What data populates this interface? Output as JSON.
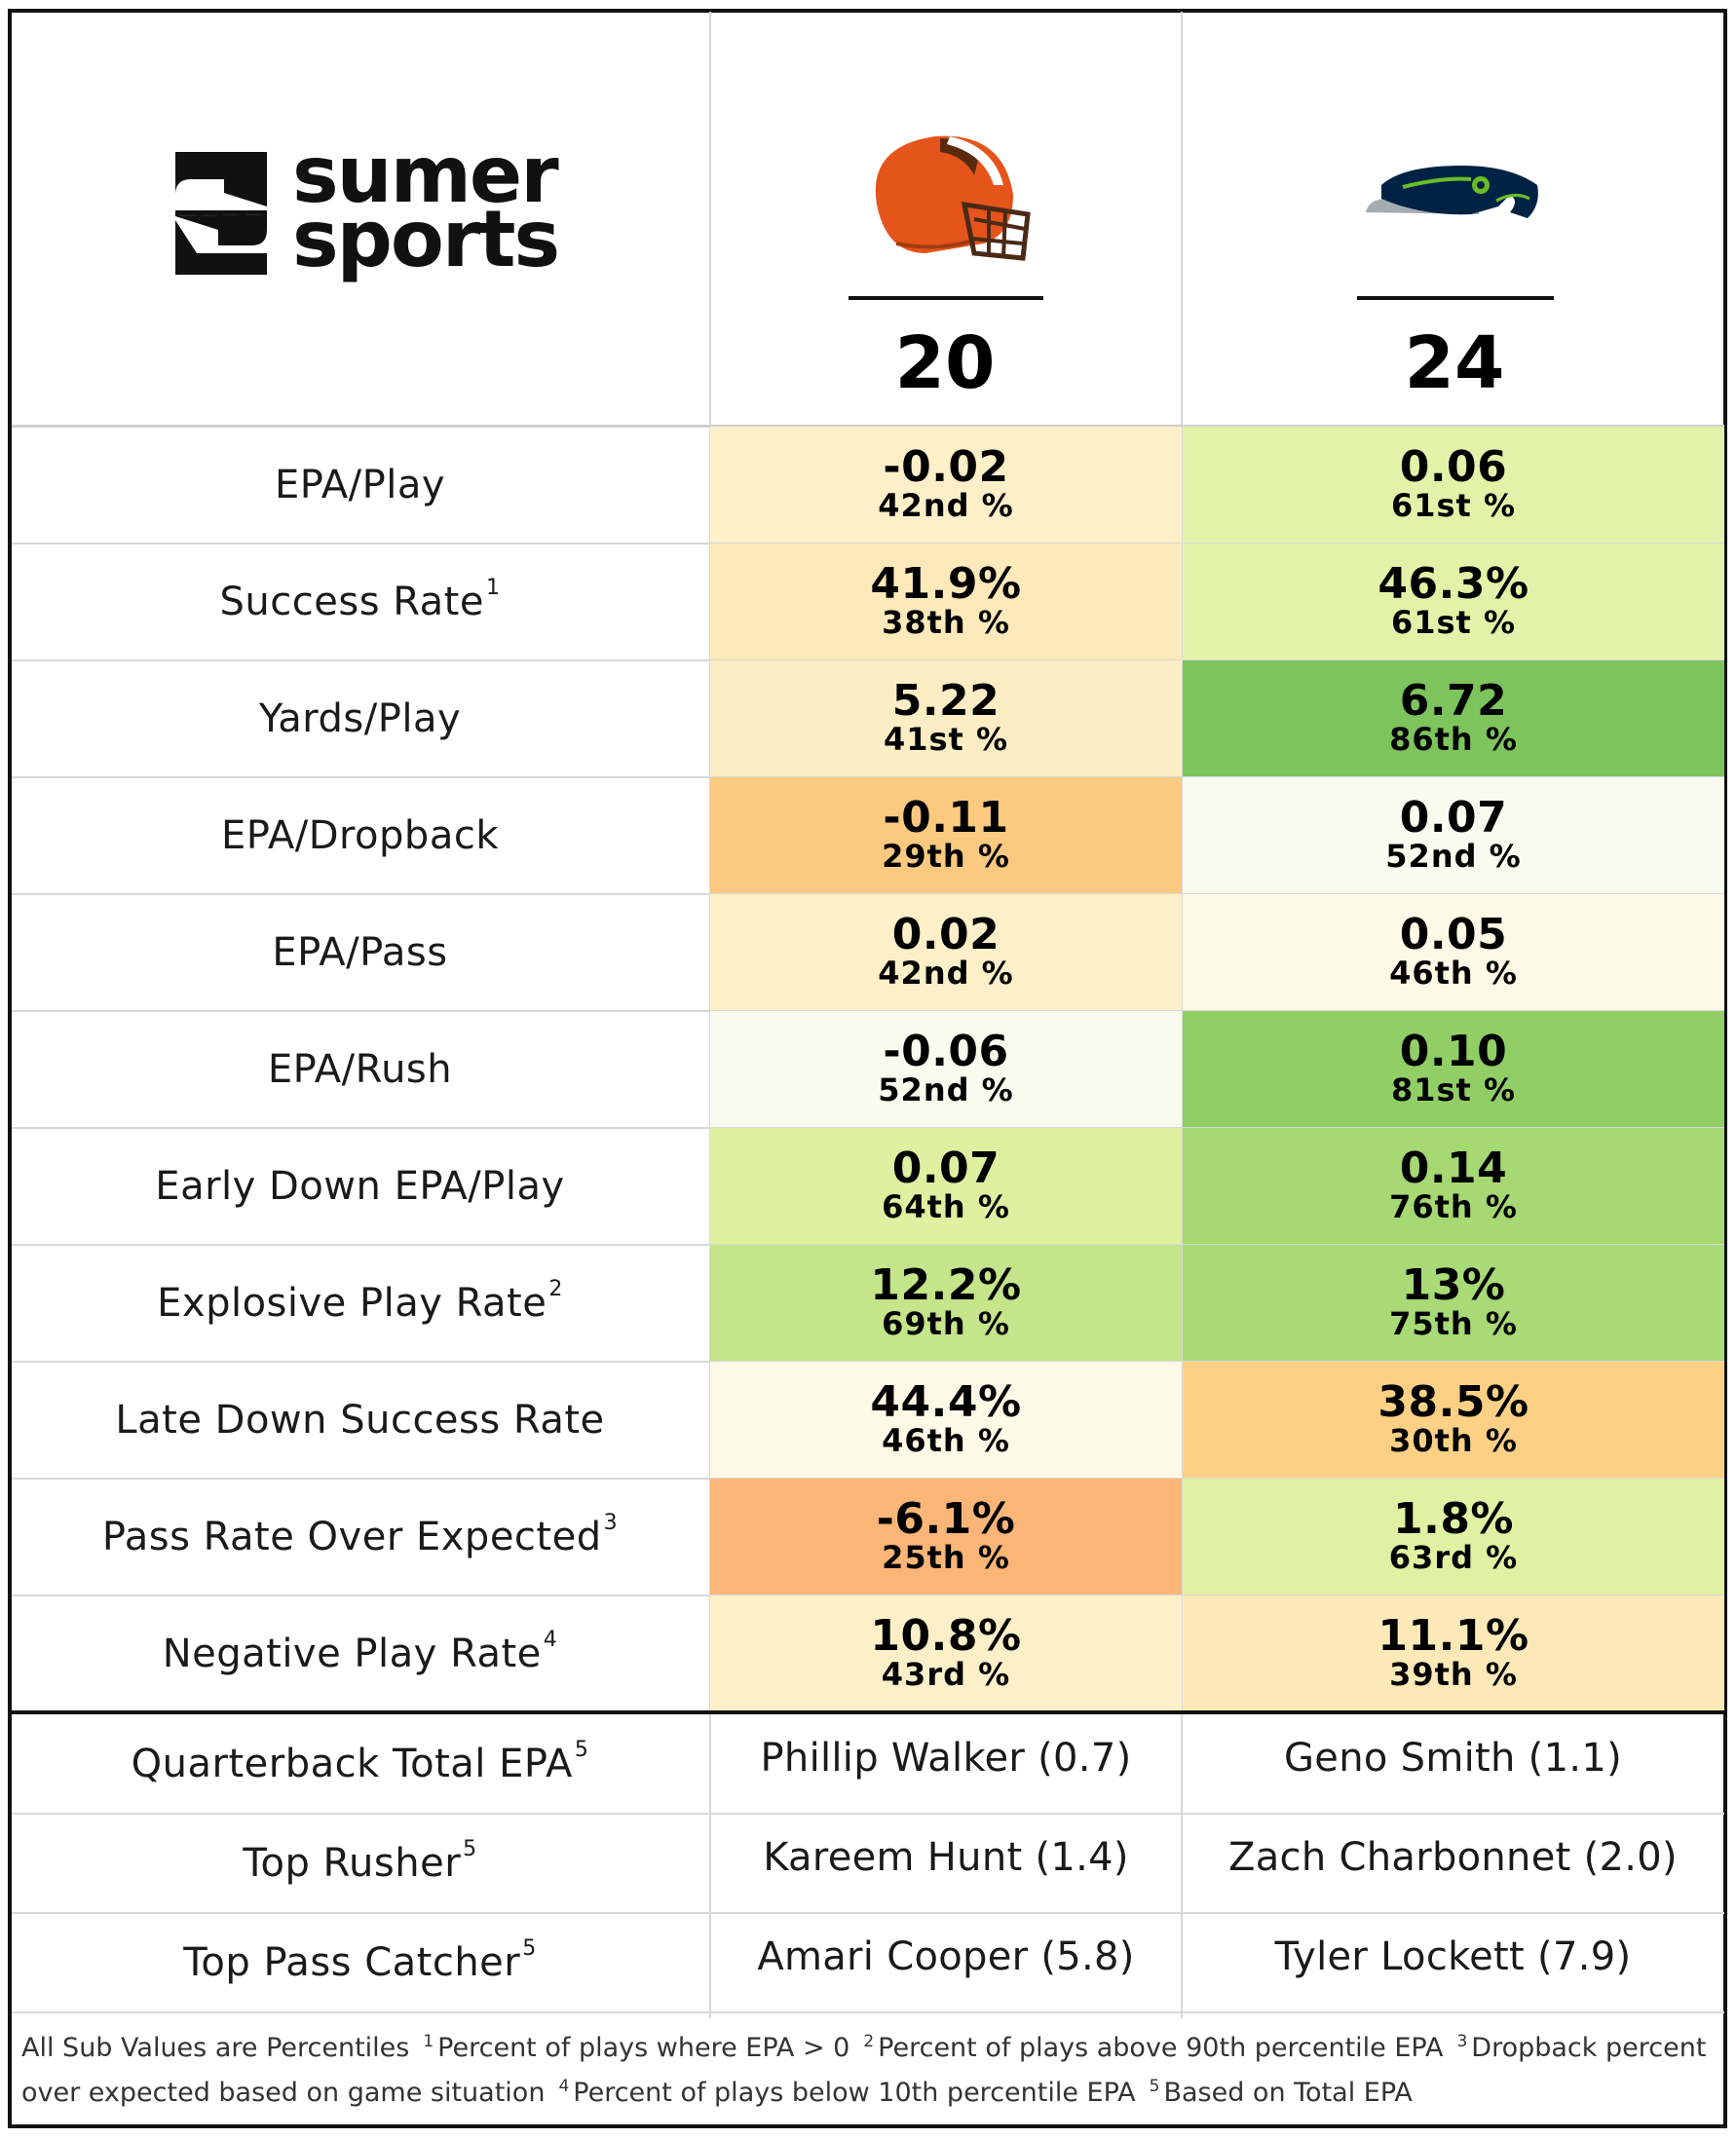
{
  "brand": {
    "line1": "sumer",
    "line2": "sports"
  },
  "teams": [
    {
      "name_icon": "browns-helmet-icon",
      "score": "20",
      "color": "#e4541b"
    },
    {
      "name_icon": "seahawks-logo-icon",
      "score": "24",
      "color": "#002244"
    }
  ],
  "rows": [
    {
      "label": "EPA/Play",
      "sup": "",
      "a": {
        "v": "-0.02",
        "p": "42nd %",
        "bg": "#fdefc8"
      },
      "b": {
        "v": "0.06",
        "p": "61st %",
        "bg": "#e2f3a9"
      }
    },
    {
      "label": "Success Rate",
      "sup": "1",
      "a": {
        "v": "41.9%",
        "p": "38th %",
        "bg": "#fde9b9"
      },
      "b": {
        "v": "46.3%",
        "p": "61st %",
        "bg": "#e2f3a9"
      }
    },
    {
      "label": "Yards/Play",
      "sup": "",
      "a": {
        "v": "5.22",
        "p": "41st %",
        "bg": "#fdedc4"
      },
      "b": {
        "v": "6.72",
        "p": "86th %",
        "bg": "#7dc45d"
      }
    },
    {
      "label": "EPA/Dropback",
      "sup": "",
      "a": {
        "v": "-0.11",
        "p": "29th %",
        "bg": "#fbc97f"
      },
      "b": {
        "v": "0.07",
        "p": "52nd %",
        "bg": "#f8fbee"
      }
    },
    {
      "label": "EPA/Pass",
      "sup": "",
      "a": {
        "v": "0.02",
        "p": "42nd %",
        "bg": "#fdefc8"
      },
      "b": {
        "v": "0.05",
        "p": "46th %",
        "bg": "#fef8e6"
      }
    },
    {
      "label": "EPA/Rush",
      "sup": "",
      "a": {
        "v": "-0.06",
        "p": "52nd %",
        "bg": "#f8fbee"
      },
      "b": {
        "v": "0.10",
        "p": "81st %",
        "bg": "#91cf66"
      }
    },
    {
      "label": "Early Down EPA/Play",
      "sup": "",
      "a": {
        "v": "0.07",
        "p": "64th %",
        "bg": "#ddf1a0"
      },
      "b": {
        "v": "0.14",
        "p": "76th %",
        "bg": "#a6d873"
      }
    },
    {
      "label": "Explosive Play Rate",
      "sup": "2",
      "a": {
        "v": "12.2%",
        "p": "69th %",
        "bg": "#c4e58a"
      },
      "b": {
        "v": "13%",
        "p": "75th %",
        "bg": "#a8da75"
      }
    },
    {
      "label": "Late Down Success Rate",
      "sup": "",
      "a": {
        "v": "44.4%",
        "p": "46th %",
        "bg": "#fef8e6"
      },
      "b": {
        "v": "38.5%",
        "p": "30th %",
        "bg": "#fcd185"
      }
    },
    {
      "label": "Pass Rate Over Expected",
      "sup": "3",
      "a": {
        "v": "-6.1%",
        "p": "25th %",
        "bg": "#fbb577"
      },
      "b": {
        "v": "1.8%",
        "p": "63rd %",
        "bg": "#dff2a3"
      }
    },
    {
      "label": "Negative Play Rate",
      "sup": "4",
      "a": {
        "v": "10.8%",
        "p": "43rd %",
        "bg": "#fdf0c9"
      },
      "b": {
        "v": "11.1%",
        "p": "39th %",
        "bg": "#fde9b8"
      }
    }
  ],
  "players": [
    {
      "label": "Quarterback Total EPA",
      "sup": "5",
      "a": "Phillip Walker (0.7)",
      "b": "Geno Smith (1.1)"
    },
    {
      "label": "Top Rusher",
      "sup": "5",
      "a": "Kareem Hunt (1.4)",
      "b": "Zach Charbonnet (2.0)"
    },
    {
      "label": "Top Pass Catcher",
      "sup": "5",
      "a": "Amari Cooper (5.8)",
      "b": "Tyler Lockett (7.9)"
    }
  ],
  "footnotes": {
    "intro": "All Sub Values are Percentiles",
    "n1": "1",
    "t1": "Percent of plays where EPA > 0",
    "n2": "2",
    "t2": "Percent of plays above 90th percentile EPA",
    "n3": "3",
    "t3": "Dropback percent over expected based on game situation",
    "n4": "4",
    "t4": "Percent of plays below 10th percentile EPA",
    "n5": "5",
    "t5": "Based on Total EPA"
  }
}
